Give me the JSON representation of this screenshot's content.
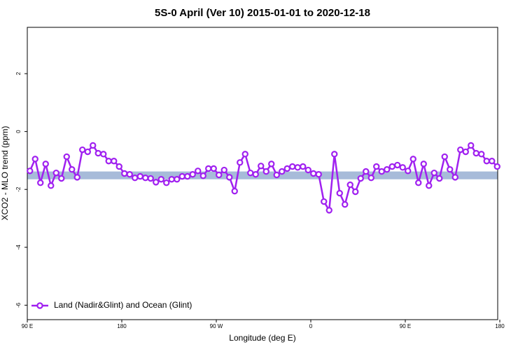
{
  "chart_data": {
    "type": "line",
    "title": "5S-0 April (Ver 10)   2015-01-01 to 2020-12-18",
    "x_label": "Longitude (deg E)",
    "y_label": "XCO2 - MLO trend (ppm)",
    "xlim": [
      90,
      538
    ],
    "ylim": [
      -6.5,
      3.6
    ],
    "xticks": [
      {
        "value": 90,
        "label": "90 E"
      },
      180,
      {
        "value": 270,
        "label": "90 W"
      },
      {
        "value": 360,
        "label": "0"
      },
      {
        "value": 450,
        "label": "90 E"
      },
      {
        "value": 540,
        "label": "180"
      }
    ],
    "yticks": [
      -6,
      -4,
      -2,
      0,
      2
    ],
    "legend": "bottomleft",
    "band": {
      "range": [
        -1.65,
        -1.38
      ],
      "color": "#a7bbd9"
    },
    "x": [
      92.5,
      97.5,
      102.5,
      107.5,
      112.5,
      117.5,
      122.5,
      127.5,
      132.5,
      137.5,
      142.5,
      147.5,
      152.5,
      157.5,
      162.5,
      167.5,
      172.5,
      177.5,
      182.5,
      187.5,
      192.5,
      197.5,
      202.5,
      207.5,
      212.5,
      217.5,
      222.5,
      227.5,
      232.5,
      237.5,
      242.5,
      247.5,
      252.5,
      257.5,
      262.5,
      267.5,
      272.5,
      277.5,
      282.5,
      287.5,
      292.5,
      297.5,
      302.5,
      307.5,
      312.5,
      317.5,
      322.5,
      327.5,
      332.5,
      337.5,
      342.5,
      347.5,
      352.5,
      357.5,
      362.5,
      367.5,
      372.5,
      377.5,
      382.5,
      387.5,
      392.5,
      397.5,
      402.5,
      407.5,
      412.5,
      417.5,
      422.5,
      427.5,
      432.5,
      437.5,
      442.5,
      447.5,
      452.5,
      457.5,
      462.5,
      467.5,
      472.5,
      477.5,
      482.5,
      487.5,
      492.5,
      497.5,
      502.5,
      507.5,
      512.5,
      517.5,
      522.5,
      527.5,
      532.5,
      537.5
    ],
    "series": [
      {
        "name": "Land (Nadir&Glint) and Ocean (Glint)",
        "color": "#a020f0",
        "values": [
          -1.36,
          -0.95,
          -1.77,
          -1.12,
          -1.87,
          -1.43,
          -1.62,
          -0.87,
          -1.31,
          -1.58,
          -0.63,
          -0.7,
          -0.48,
          -0.75,
          -0.78,
          -1.02,
          -1.02,
          -1.21,
          -1.45,
          -1.48,
          -1.6,
          -1.55,
          -1.6,
          -1.62,
          -1.75,
          -1.65,
          -1.77,
          -1.65,
          -1.65,
          -1.55,
          -1.55,
          -1.48,
          -1.36,
          -1.53,
          -1.28,
          -1.28,
          -1.5,
          -1.33,
          -1.58,
          -2.06,
          -1.07,
          -0.78,
          -1.43,
          -1.48,
          -1.19,
          -1.38,
          -1.12,
          -1.5,
          -1.38,
          -1.28,
          -1.21,
          -1.24,
          -1.21,
          -1.33,
          -1.45,
          -1.48,
          -2.42,
          -2.72,
          -0.78,
          -2.13,
          -2.52,
          -1.84,
          -2.08,
          -1.62,
          -1.38,
          -1.6,
          -1.21,
          -1.38,
          -1.31,
          -1.21,
          -1.16,
          -1.24,
          -1.36,
          -0.95,
          -1.77,
          -1.12,
          -1.87,
          -1.43,
          -1.62,
          -0.87,
          -1.31,
          -1.58,
          -0.63,
          -0.7,
          -0.48,
          -0.75,
          -0.78,
          -1.02,
          -1.02,
          -1.21
        ]
      }
    ]
  }
}
